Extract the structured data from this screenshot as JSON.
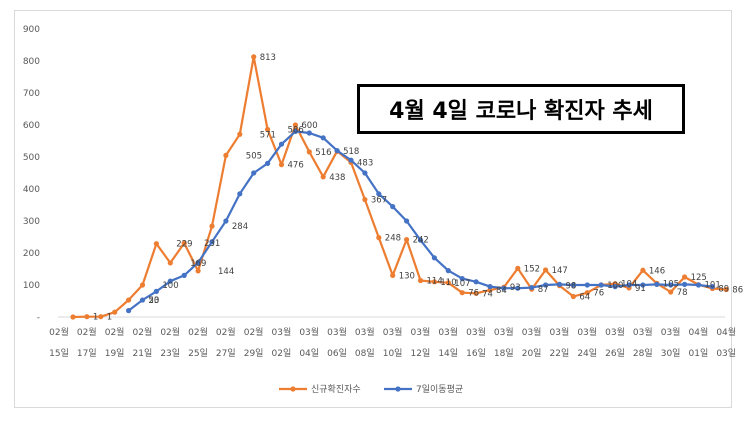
{
  "chart_data": {
    "type": "line",
    "title": "4월 4일 코로나 확진자 추세",
    "ylim": [
      0,
      900
    ],
    "y_ticks": [
      "-",
      "100",
      "200",
      "300",
      "400",
      "500",
      "600",
      "700",
      "800",
      "900"
    ],
    "x_tick_labels": [
      [
        "02월",
        "15일"
      ],
      [
        "02월",
        "17일"
      ],
      [
        "02월",
        "19일"
      ],
      [
        "02월",
        "21일"
      ],
      [
        "02월",
        "23일"
      ],
      [
        "02월",
        "25일"
      ],
      [
        "02월",
        "27일"
      ],
      [
        "02월",
        "29일"
      ],
      [
        "03월",
        "02일"
      ],
      [
        "03월",
        "04일"
      ],
      [
        "03월",
        "06일"
      ],
      [
        "03월",
        "08일"
      ],
      [
        "03월",
        "10일"
      ],
      [
        "03월",
        "12일"
      ],
      [
        "03월",
        "14일"
      ],
      [
        "03월",
        "16일"
      ],
      [
        "03월",
        "18일"
      ],
      [
        "03월",
        "20일"
      ],
      [
        "03월",
        "22일"
      ],
      [
        "03월",
        "24일"
      ],
      [
        "03월",
        "26일"
      ],
      [
        "03월",
        "28일"
      ],
      [
        "03월",
        "30일"
      ],
      [
        "04월",
        "01일"
      ],
      [
        "04월",
        "03일"
      ]
    ],
    "series": [
      {
        "name": "신규확진자수",
        "color": "#ed7d31",
        "values": [
          0,
          1,
          1,
          15,
          53,
          100,
          229,
          169,
          231,
          144,
          284,
          505,
          571,
          813,
          586,
          476,
          600,
          516,
          438,
          518,
          483,
          367,
          248,
          130,
          242,
          114,
          110,
          107,
          76,
          74,
          84,
          93,
          152,
          87,
          147,
          98,
          64,
          76,
          100,
          104,
          91,
          146,
          105,
          78,
          125,
          101,
          89,
          86
        ]
      },
      {
        "name": "7일이동평균",
        "color": "#4472c4",
        "start_index": 4,
        "values": [
          20,
          53,
          80,
          112,
          130,
          170,
          235,
          300,
          385,
          450,
          480,
          540,
          580,
          575,
          560,
          520,
          490,
          450,
          385,
          345,
          300,
          240,
          185,
          145,
          120,
          110,
          95,
          90,
          90,
          92,
          100,
          102,
          100,
          100,
          100,
          95,
          100,
          100,
          102,
          100,
          102,
          100,
          95
        ]
      }
    ],
    "data_labels": [
      {
        "index": 1,
        "text": "1"
      },
      {
        "index": 2,
        "text": "1"
      },
      {
        "index": 5,
        "text": "20",
        "series": "7일이동평균"
      },
      {
        "index": 5,
        "text": "53"
      },
      {
        "index": 6,
        "text": "100"
      },
      {
        "index": 7,
        "text": "229"
      },
      {
        "index": 8,
        "text": "169"
      },
      {
        "index": 9,
        "text": "231"
      },
      {
        "index": 10,
        "text": "144"
      },
      {
        "index": 11,
        "text": "284"
      },
      {
        "index": 12,
        "text": "505"
      },
      {
        "index": 13,
        "text": "571"
      },
      {
        "index": 13,
        "text": "813"
      },
      {
        "index": 15,
        "text": "586"
      },
      {
        "index": 15,
        "text": "476"
      },
      {
        "index": 16,
        "text": "600"
      },
      {
        "index": 17,
        "text": "516"
      },
      {
        "index": 18,
        "text": "438"
      },
      {
        "index": 19,
        "text": "518"
      },
      {
        "index": 20,
        "text": "483"
      },
      {
        "index": 21,
        "text": "367"
      },
      {
        "index": 22,
        "text": "248"
      },
      {
        "index": 23,
        "text": "130"
      },
      {
        "index": 24,
        "text": "242"
      },
      {
        "index": 25,
        "text": "114"
      },
      {
        "index": 26,
        "text": "110"
      },
      {
        "index": 27,
        "text": "107"
      },
      {
        "index": 28,
        "text": "76"
      },
      {
        "index": 29,
        "text": "74"
      },
      {
        "index": 30,
        "text": "84"
      },
      {
        "index": 31,
        "text": "93"
      },
      {
        "index": 32,
        "text": "152"
      },
      {
        "index": 33,
        "text": "87"
      },
      {
        "index": 34,
        "text": "147"
      },
      {
        "index": 35,
        "text": "98"
      },
      {
        "index": 36,
        "text": "64"
      },
      {
        "index": 37,
        "text": "76"
      },
      {
        "index": 38,
        "text": "100"
      },
      {
        "index": 39,
        "text": "104"
      },
      {
        "index": 40,
        "text": "91"
      },
      {
        "index": 41,
        "text": "146"
      },
      {
        "index": 42,
        "text": "105"
      },
      {
        "index": 43,
        "text": "78"
      },
      {
        "index": 44,
        "text": "125"
      },
      {
        "index": 45,
        "text": "101"
      },
      {
        "index": 46,
        "text": "89"
      },
      {
        "index": 47,
        "text": "86"
      }
    ],
    "legend_position": "bottom",
    "grid": false
  }
}
